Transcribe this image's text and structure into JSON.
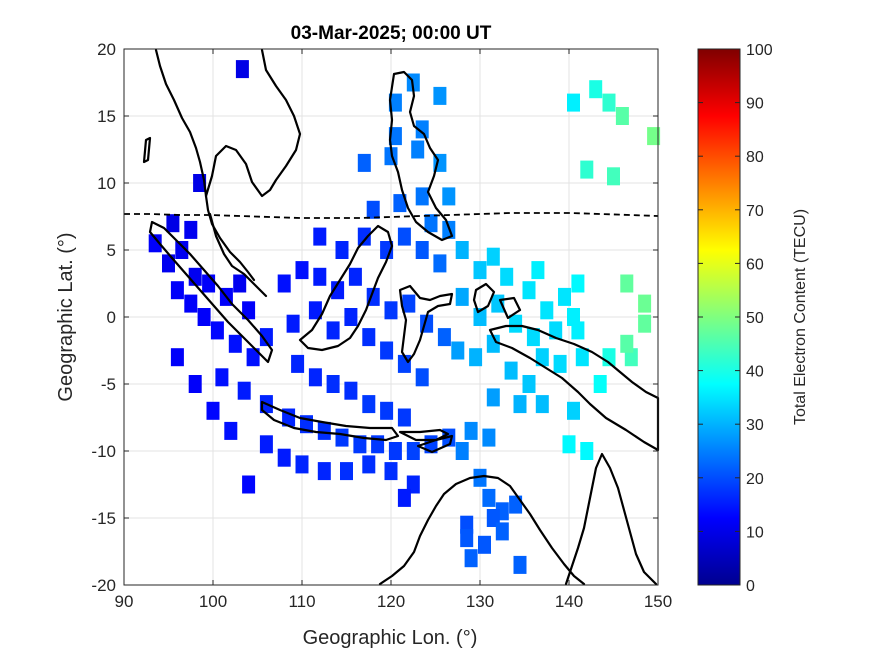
{
  "chart_data": {
    "type": "heatmap",
    "title": "03-Mar-2025; 00:00 UT",
    "xlabel": "Geographic Lon. (°)",
    "ylabel": "Geographic Lat. (°)",
    "xlim": [
      90,
      150
    ],
    "ylim": [
      -20,
      20
    ],
    "xticks": [
      "90",
      "100",
      "110",
      "120",
      "130",
      "140",
      "150"
    ],
    "yticks": [
      "-20",
      "-15",
      "-10",
      "-5",
      "0",
      "5",
      "10",
      "15",
      "20"
    ],
    "grid": true,
    "colorbar": {
      "label": "Total Electron Content (TECU)",
      "range": [
        0,
        100
      ],
      "ticks": [
        "0",
        "10",
        "20",
        "30",
        "40",
        "50",
        "60",
        "70",
        "80",
        "90",
        "100"
      ],
      "colormap": "jet"
    },
    "points": [
      {
        "lon": 103.3,
        "lat": 18.5,
        "tec": 10
      },
      {
        "lon": 98.5,
        "lat": 10.0,
        "tec": 10
      },
      {
        "lon": 95.5,
        "lat": 7.0,
        "tec": 10
      },
      {
        "lon": 93.5,
        "lat": 5.5,
        "tec": 12
      },
      {
        "lon": 95.0,
        "lat": 4.0,
        "tec": 11
      },
      {
        "lon": 96.5,
        "lat": 5.0,
        "tec": 11
      },
      {
        "lon": 97.5,
        "lat": 6.5,
        "tec": 11
      },
      {
        "lon": 98.0,
        "lat": 3.0,
        "tec": 11
      },
      {
        "lon": 96.0,
        "lat": 2.0,
        "tec": 12
      },
      {
        "lon": 97.5,
        "lat": 1.0,
        "tec": 12
      },
      {
        "lon": 99.5,
        "lat": 2.5,
        "tec": 12
      },
      {
        "lon": 99.0,
        "lat": 0.0,
        "tec": 12
      },
      {
        "lon": 100.5,
        "lat": -1.0,
        "tec": 13
      },
      {
        "lon": 101.5,
        "lat": 1.5,
        "tec": 12
      },
      {
        "lon": 103.0,
        "lat": 2.5,
        "tec": 11
      },
      {
        "lon": 104.0,
        "lat": 0.5,
        "tec": 12
      },
      {
        "lon": 102.5,
        "lat": -2.0,
        "tec": 14
      },
      {
        "lon": 104.5,
        "lat": -3.0,
        "tec": 14
      },
      {
        "lon": 106.0,
        "lat": -1.5,
        "tec": 15
      },
      {
        "lon": 101.0,
        "lat": -4.5,
        "tec": 14
      },
      {
        "lon": 103.5,
        "lat": -5.5,
        "tec": 15
      },
      {
        "lon": 106.0,
        "lat": -6.5,
        "tec": 16
      },
      {
        "lon": 108.5,
        "lat": -7.5,
        "tec": 16
      },
      {
        "lon": 110.5,
        "lat": -8.0,
        "tec": 17
      },
      {
        "lon": 112.5,
        "lat": -8.5,
        "tec": 17
      },
      {
        "lon": 114.5,
        "lat": -9.0,
        "tec": 18
      },
      {
        "lon": 116.5,
        "lat": -9.5,
        "tec": 18
      },
      {
        "lon": 118.5,
        "lat": -9.5,
        "tec": 18
      },
      {
        "lon": 120.5,
        "lat": -10.0,
        "tec": 18
      },
      {
        "lon": 122.5,
        "lat": -10.0,
        "tec": 19
      },
      {
        "lon": 124.5,
        "lat": -9.5,
        "tec": 19
      },
      {
        "lon": 126.5,
        "lat": -9.0,
        "tec": 20
      },
      {
        "lon": 106.0,
        "lat": -9.5,
        "tec": 15
      },
      {
        "lon": 108.0,
        "lat": -10.5,
        "tec": 15
      },
      {
        "lon": 110.0,
        "lat": -11.0,
        "tec": 16
      },
      {
        "lon": 112.5,
        "lat": -11.5,
        "tec": 16
      },
      {
        "lon": 115.0,
        "lat": -11.5,
        "tec": 17
      },
      {
        "lon": 117.5,
        "lat": -11.0,
        "tec": 17
      },
      {
        "lon": 120.0,
        "lat": -11.5,
        "tec": 17
      },
      {
        "lon": 122.5,
        "lat": -12.5,
        "tec": 16
      },
      {
        "lon": 121.5,
        "lat": -13.5,
        "tec": 15
      },
      {
        "lon": 104.0,
        "lat": -12.5,
        "tec": 13
      },
      {
        "lon": 102.0,
        "lat": -8.5,
        "tec": 14
      },
      {
        "lon": 100.0,
        "lat": -7.0,
        "tec": 13
      },
      {
        "lon": 98.0,
        "lat": -5.0,
        "tec": 12
      },
      {
        "lon": 96.0,
        "lat": -3.0,
        "tec": 12
      },
      {
        "lon": 109.5,
        "lat": -3.5,
        "tec": 16
      },
      {
        "lon": 111.5,
        "lat": -4.5,
        "tec": 16
      },
      {
        "lon": 113.5,
        "lat": -5.0,
        "tec": 17
      },
      {
        "lon": 115.5,
        "lat": -5.5,
        "tec": 17
      },
      {
        "lon": 117.5,
        "lat": -6.5,
        "tec": 18
      },
      {
        "lon": 119.5,
        "lat": -7.0,
        "tec": 18
      },
      {
        "lon": 121.5,
        "lat": -7.5,
        "tec": 18
      },
      {
        "lon": 109.0,
        "lat": -0.5,
        "tec": 15
      },
      {
        "lon": 111.5,
        "lat": 0.5,
        "tec": 15
      },
      {
        "lon": 113.5,
        "lat": -1.0,
        "tec": 16
      },
      {
        "lon": 115.5,
        "lat": 0.0,
        "tec": 16
      },
      {
        "lon": 117.5,
        "lat": -1.5,
        "tec": 17
      },
      {
        "lon": 119.5,
        "lat": -2.5,
        "tec": 18
      },
      {
        "lon": 121.5,
        "lat": -3.5,
        "tec": 19
      },
      {
        "lon": 123.5,
        "lat": -4.5,
        "tec": 20
      },
      {
        "lon": 108.0,
        "lat": 2.5,
        "tec": 14
      },
      {
        "lon": 110.0,
        "lat": 3.5,
        "tec": 14
      },
      {
        "lon": 112.0,
        "lat": 3.0,
        "tec": 15
      },
      {
        "lon": 114.0,
        "lat": 2.0,
        "tec": 15
      },
      {
        "lon": 116.0,
        "lat": 3.0,
        "tec": 16
      },
      {
        "lon": 118.0,
        "lat": 1.5,
        "tec": 17
      },
      {
        "lon": 120.0,
        "lat": 0.5,
        "tec": 18
      },
      {
        "lon": 122.0,
        "lat": 1.0,
        "tec": 19
      },
      {
        "lon": 124.0,
        "lat": -0.5,
        "tec": 20
      },
      {
        "lon": 126.0,
        "lat": -1.5,
        "tec": 22
      },
      {
        "lon": 112.0,
        "lat": 6.0,
        "tec": 15
      },
      {
        "lon": 114.5,
        "lat": 5.0,
        "tec": 16
      },
      {
        "lon": 117.0,
        "lat": 6.0,
        "tec": 17
      },
      {
        "lon": 119.5,
        "lat": 5.0,
        "tec": 18
      },
      {
        "lon": 121.5,
        "lat": 6.0,
        "tec": 20
      },
      {
        "lon": 123.5,
        "lat": 5.0,
        "tec": 21
      },
      {
        "lon": 125.5,
        "lat": 4.0,
        "tec": 23
      },
      {
        "lon": 124.5,
        "lat": 7.0,
        "tec": 24
      },
      {
        "lon": 126.5,
        "lat": 6.5,
        "tec": 25
      },
      {
        "lon": 118.0,
        "lat": 8.0,
        "tec": 20
      },
      {
        "lon": 121.0,
        "lat": 8.5,
        "tec": 22
      },
      {
        "lon": 123.5,
        "lat": 9.0,
        "tec": 24
      },
      {
        "lon": 126.5,
        "lat": 9.0,
        "tec": 27
      },
      {
        "lon": 117.0,
        "lat": 11.5,
        "tec": 22
      },
      {
        "lon": 120.0,
        "lat": 12.0,
        "tec": 24
      },
      {
        "lon": 123.0,
        "lat": 12.5,
        "tec": 25
      },
      {
        "lon": 125.5,
        "lat": 11.5,
        "tec": 27
      },
      {
        "lon": 120.5,
        "lat": 13.5,
        "tec": 24
      },
      {
        "lon": 123.5,
        "lat": 14.0,
        "tec": 25
      },
      {
        "lon": 120.5,
        "lat": 16.0,
        "tec": 25
      },
      {
        "lon": 122.5,
        "lat": 17.5,
        "tec": 26
      },
      {
        "lon": 125.5,
        "lat": 16.5,
        "tec": 27
      },
      {
        "lon": 128.0,
        "lat": 5.0,
        "tec": 30
      },
      {
        "lon": 130.0,
        "lat": 3.5,
        "tec": 32
      },
      {
        "lon": 131.5,
        "lat": 4.5,
        "tec": 33
      },
      {
        "lon": 133.0,
        "lat": 3.0,
        "tec": 34
      },
      {
        "lon": 135.5,
        "lat": 2.0,
        "tec": 35
      },
      {
        "lon": 136.5,
        "lat": 3.5,
        "tec": 36
      },
      {
        "lon": 137.5,
        "lat": 0.5,
        "tec": 35
      },
      {
        "lon": 139.5,
        "lat": 1.5,
        "tec": 35
      },
      {
        "lon": 141.0,
        "lat": 2.5,
        "tec": 37
      },
      {
        "lon": 128.0,
        "lat": 1.5,
        "tec": 29
      },
      {
        "lon": 130.0,
        "lat": 0.0,
        "tec": 31
      },
      {
        "lon": 132.0,
        "lat": 1.0,
        "tec": 32
      },
      {
        "lon": 134.0,
        "lat": -0.5,
        "tec": 34
      },
      {
        "lon": 136.0,
        "lat": -1.5,
        "tec": 34
      },
      {
        "lon": 138.5,
        "lat": -1.0,
        "tec": 34
      },
      {
        "lon": 140.5,
        "lat": 0.0,
        "tec": 36
      },
      {
        "lon": 127.5,
        "lat": -2.5,
        "tec": 28
      },
      {
        "lon": 129.5,
        "lat": -3.0,
        "tec": 30
      },
      {
        "lon": 131.5,
        "lat": -2.0,
        "tec": 31
      },
      {
        "lon": 133.5,
        "lat": -4.0,
        "tec": 31
      },
      {
        "lon": 135.5,
        "lat": -5.0,
        "tec": 32
      },
      {
        "lon": 137.0,
        "lat": -3.0,
        "tec": 33
      },
      {
        "lon": 139.0,
        "lat": -3.5,
        "tec": 34
      },
      {
        "lon": 141.5,
        "lat": -3.0,
        "tec": 35
      },
      {
        "lon": 141.0,
        "lat": -1.0,
        "tec": 36
      },
      {
        "lon": 144.5,
        "lat": -3.0,
        "tec": 40
      },
      {
        "lon": 147.0,
        "lat": -3.0,
        "tec": 44
      },
      {
        "lon": 146.5,
        "lat": -2.0,
        "tec": 46
      },
      {
        "lon": 148.5,
        "lat": -0.5,
        "tec": 47
      },
      {
        "lon": 143.5,
        "lat": -5.0,
        "tec": 38
      },
      {
        "lon": 140.5,
        "lat": -7.0,
        "tec": 33
      },
      {
        "lon": 137.0,
        "lat": -6.5,
        "tec": 31
      },
      {
        "lon": 134.5,
        "lat": -6.5,
        "tec": 30
      },
      {
        "lon": 131.5,
        "lat": -6.0,
        "tec": 28
      },
      {
        "lon": 129.0,
        "lat": -8.5,
        "tec": 26
      },
      {
        "lon": 131.0,
        "lat": -9.0,
        "tec": 26
      },
      {
        "lon": 128.0,
        "lat": -10.0,
        "tec": 25
      },
      {
        "lon": 140.0,
        "lat": -9.5,
        "tec": 37
      },
      {
        "lon": 142.0,
        "lat": -10.0,
        "tec": 37
      },
      {
        "lon": 130.0,
        "lat": -12.0,
        "tec": 24
      },
      {
        "lon": 131.0,
        "lat": -13.5,
        "tec": 23
      },
      {
        "lon": 132.5,
        "lat": -14.5,
        "tec": 22
      },
      {
        "lon": 134.0,
        "lat": -14.0,
        "tec": 22
      },
      {
        "lon": 131.5,
        "lat": -15.0,
        "tec": 21
      },
      {
        "lon": 132.5,
        "lat": -16.0,
        "tec": 22
      },
      {
        "lon": 130.5,
        "lat": -17.0,
        "tec": 21
      },
      {
        "lon": 128.5,
        "lat": -15.5,
        "tec": 20
      },
      {
        "lon": 128.5,
        "lat": -16.5,
        "tec": 21
      },
      {
        "lon": 134.5,
        "lat": -18.5,
        "tec": 22
      },
      {
        "lon": 129.0,
        "lat": -18.0,
        "tec": 22
      },
      {
        "lon": 140.5,
        "lat": 16.0,
        "tec": 36
      },
      {
        "lon": 143.0,
        "lat": 17.0,
        "tec": 40
      },
      {
        "lon": 144.5,
        "lat": 16.0,
        "tec": 42
      },
      {
        "lon": 146.0,
        "lat": 15.0,
        "tec": 46
      },
      {
        "lon": 149.5,
        "lat": 13.5,
        "tec": 49
      },
      {
        "lon": 142.0,
        "lat": 11.0,
        "tec": 42
      },
      {
        "lon": 145.0,
        "lat": 10.5,
        "tec": 44
      },
      {
        "lon": 146.5,
        "lat": 2.5,
        "tec": 47
      },
      {
        "lon": 148.5,
        "lat": 1.0,
        "tec": 48
      }
    ]
  }
}
